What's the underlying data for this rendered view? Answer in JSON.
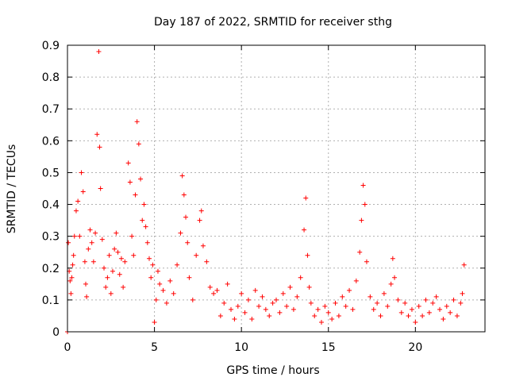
{
  "chart_data": {
    "type": "scatter",
    "title": "Day 187 of 2022, SRMTID for receiver sthg",
    "xlabel": "GPS time / hours",
    "ylabel": "SRMTID / TECUs",
    "xlim": [
      0,
      24
    ],
    "ylim": [
      0,
      0.9
    ],
    "xticks": [
      0,
      5,
      10,
      15,
      20
    ],
    "yticks": [
      0,
      0.1,
      0.2,
      0.3,
      0.4,
      0.5,
      0.6,
      0.7,
      0.8,
      0.9
    ],
    "xtick_labels": [
      "0",
      "5",
      "10",
      "15",
      "20"
    ],
    "ytick_labels": [
      "0",
      "0.1",
      "0.2",
      "0.3",
      "0.4",
      "0.5",
      "0.6",
      "0.7",
      "0.8",
      "0.9"
    ],
    "grid": true,
    "marker": "+",
    "color": "#ff0000",
    "series": [
      {
        "name": "SRMTID",
        "x": [
          0.0,
          0.05,
          0.1,
          0.15,
          0.2,
          0.25,
          0.3,
          0.35,
          0.4,
          0.5,
          0.6,
          0.7,
          0.8,
          0.9,
          1.0,
          1.05,
          1.1,
          1.2,
          1.3,
          1.4,
          1.5,
          1.6,
          1.7,
          1.8,
          1.85,
          1.9,
          2.0,
          2.1,
          2.2,
          2.3,
          2.4,
          2.5,
          2.6,
          2.7,
          2.8,
          2.9,
          3.0,
          3.1,
          3.2,
          3.3,
          3.5,
          3.6,
          3.7,
          3.8,
          3.9,
          4.0,
          4.1,
          4.2,
          4.3,
          4.4,
          4.5,
          4.6,
          4.7,
          4.8,
          4.9,
          5.0,
          5.1,
          5.2,
          5.3,
          5.5,
          5.7,
          5.9,
          6.1,
          6.3,
          6.5,
          6.6,
          6.7,
          6.8,
          6.9,
          7.0,
          7.2,
          7.4,
          7.6,
          7.7,
          7.8,
          8.0,
          8.2,
          8.4,
          8.6,
          8.8,
          9.0,
          9.2,
          9.4,
          9.6,
          9.8,
          10.0,
          10.2,
          10.4,
          10.6,
          10.8,
          11.0,
          11.2,
          11.4,
          11.6,
          11.8,
          12.0,
          12.2,
          12.4,
          12.6,
          12.8,
          13.0,
          13.2,
          13.4,
          13.6,
          13.7,
          13.8,
          13.9,
          14.0,
          14.2,
          14.4,
          14.6,
          14.8,
          15.0,
          15.2,
          15.4,
          15.6,
          15.8,
          16.0,
          16.2,
          16.4,
          16.6,
          16.8,
          16.9,
          17.0,
          17.1,
          17.2,
          17.4,
          17.6,
          17.8,
          18.0,
          18.2,
          18.4,
          18.6,
          18.7,
          18.8,
          19.0,
          19.2,
          19.4,
          19.6,
          19.8,
          20.0,
          20.2,
          20.4,
          20.6,
          20.8,
          21.0,
          21.2,
          21.4,
          21.6,
          21.8,
          22.0,
          22.2,
          22.4,
          22.6,
          22.7,
          22.8
        ],
        "y": [
          0.0,
          0.28,
          0.19,
          0.16,
          0.12,
          0.17,
          0.21,
          0.24,
          0.3,
          0.38,
          0.41,
          0.3,
          0.5,
          0.44,
          0.22,
          0.15,
          0.11,
          0.26,
          0.32,
          0.28,
          0.22,
          0.31,
          0.62,
          0.88,
          0.58,
          0.45,
          0.29,
          0.2,
          0.14,
          0.17,
          0.24,
          0.12,
          0.19,
          0.26,
          0.31,
          0.25,
          0.18,
          0.23,
          0.14,
          0.22,
          0.53,
          0.47,
          0.3,
          0.24,
          0.43,
          0.66,
          0.59,
          0.48,
          0.35,
          0.4,
          0.33,
          0.28,
          0.23,
          0.17,
          0.21,
          0.03,
          0.1,
          0.19,
          0.15,
          0.13,
          0.09,
          0.16,
          0.12,
          0.21,
          0.31,
          0.49,
          0.43,
          0.36,
          0.28,
          0.17,
          0.1,
          0.24,
          0.35,
          0.38,
          0.27,
          0.22,
          0.14,
          0.12,
          0.13,
          0.05,
          0.09,
          0.15,
          0.07,
          0.04,
          0.08,
          0.12,
          0.06,
          0.1,
          0.04,
          0.13,
          0.08,
          0.11,
          0.07,
          0.05,
          0.09,
          0.1,
          0.06,
          0.12,
          0.08,
          0.14,
          0.07,
          0.11,
          0.17,
          0.32,
          0.42,
          0.24,
          0.14,
          0.09,
          0.05,
          0.07,
          0.03,
          0.08,
          0.06,
          0.04,
          0.09,
          0.05,
          0.11,
          0.08,
          0.13,
          0.07,
          0.16,
          0.25,
          0.35,
          0.46,
          0.4,
          0.22,
          0.11,
          0.07,
          0.09,
          0.05,
          0.12,
          0.08,
          0.15,
          0.23,
          0.17,
          0.1,
          0.06,
          0.09,
          0.05,
          0.07,
          0.03,
          0.08,
          0.05,
          0.1,
          0.06,
          0.09,
          0.11,
          0.07,
          0.04,
          0.08,
          0.06,
          0.1,
          0.05,
          0.09,
          0.12,
          0.21
        ]
      }
    ]
  }
}
